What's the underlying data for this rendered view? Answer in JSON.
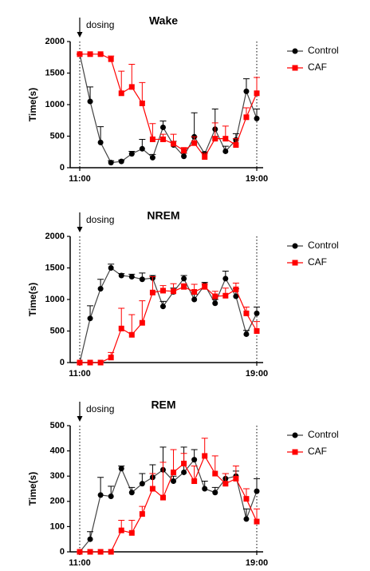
{
  "chart_data": [
    {
      "type": "line",
      "title": "Wake",
      "y_label": "Time(s)",
      "annotation": "dosing",
      "categories": [
        "11:00",
        null,
        null,
        null,
        null,
        null,
        null,
        null,
        null,
        null,
        null,
        null,
        null,
        null,
        null,
        null,
        null,
        "19:00"
      ],
      "series": [
        {
          "name": "Control",
          "color": "#000000",
          "line_color": "#444444",
          "marker": "circle",
          "values": [
            1800,
            1050,
            400,
            80,
            100,
            220,
            300,
            160,
            640,
            360,
            180,
            490,
            220,
            610,
            260,
            440,
            1210,
            780
          ],
          "errors": [
            0,
            230,
            250,
            30,
            20,
            40,
            150,
            50,
            100,
            60,
            50,
            380,
            30,
            320,
            80,
            100,
            200,
            150
          ]
        },
        {
          "name": "CAF",
          "color": "#ff0000",
          "line_color": "#ff0000",
          "marker": "square",
          "values": [
            1800,
            1800,
            1800,
            1720,
            1180,
            1280,
            1020,
            450,
            450,
            380,
            270,
            390,
            170,
            460,
            460,
            360,
            800,
            1180
          ],
          "errors": [
            0,
            0,
            0,
            50,
            350,
            360,
            330,
            250,
            80,
            150,
            50,
            100,
            60,
            250,
            200,
            100,
            150,
            250
          ]
        }
      ],
      "ylim": [
        0,
        2000
      ],
      "yticks": [
        0,
        500,
        1000,
        1500,
        2000
      ],
      "legend": "right"
    },
    {
      "type": "line",
      "title": "NREM",
      "y_label": "Time(s)",
      "annotation": "dosing",
      "categories": [
        "11:00",
        null,
        null,
        null,
        null,
        null,
        null,
        null,
        null,
        null,
        null,
        null,
        null,
        null,
        null,
        null,
        null,
        "19:00"
      ],
      "series": [
        {
          "name": "Control",
          "color": "#000000",
          "line_color": "#444444",
          "marker": "circle",
          "values": [
            0,
            700,
            1170,
            1500,
            1380,
            1360,
            1320,
            1340,
            890,
            1120,
            1330,
            1000,
            1230,
            940,
            1330,
            1050,
            450,
            780
          ],
          "errors": [
            0,
            200,
            150,
            60,
            30,
            40,
            100,
            40,
            80,
            60,
            50,
            80,
            40,
            60,
            120,
            120,
            60,
            100
          ]
        },
        {
          "name": "CAF",
          "color": "#ff0000",
          "line_color": "#ff0000",
          "marker": "square",
          "values": [
            0,
            0,
            0,
            80,
            540,
            440,
            630,
            1110,
            1140,
            1130,
            1200,
            1120,
            1200,
            1050,
            1060,
            1160,
            780,
            500
          ],
          "errors": [
            0,
            0,
            0,
            80,
            320,
            320,
            350,
            250,
            80,
            120,
            50,
            120,
            50,
            80,
            120,
            100,
            100,
            150
          ]
        }
      ],
      "ylim": [
        0,
        2000
      ],
      "yticks": [
        0,
        500,
        1000,
        1500,
        2000
      ],
      "legend": "right"
    },
    {
      "type": "line",
      "title": "REM",
      "y_label": "Time(s)",
      "annotation": "dosing",
      "categories": [
        "11:00",
        null,
        null,
        null,
        null,
        null,
        null,
        null,
        null,
        null,
        null,
        null,
        null,
        null,
        null,
        null,
        null,
        "19:00"
      ],
      "series": [
        {
          "name": "Control",
          "color": "#000000",
          "line_color": "#444444",
          "marker": "circle",
          "values": [
            0,
            50,
            225,
            220,
            330,
            235,
            270,
            295,
            325,
            280,
            315,
            365,
            250,
            235,
            290,
            300,
            130,
            240
          ],
          "errors": [
            0,
            30,
            70,
            40,
            10,
            20,
            40,
            50,
            90,
            20,
            100,
            40,
            30,
            20,
            20,
            20,
            40,
            50
          ]
        },
        {
          "name": "CAF",
          "color": "#ff0000",
          "line_color": "#ff0000",
          "marker": "square",
          "values": [
            0,
            0,
            0,
            0,
            85,
            75,
            150,
            250,
            215,
            315,
            350,
            280,
            380,
            310,
            270,
            290,
            210,
            120
          ],
          "errors": [
            0,
            0,
            0,
            0,
            40,
            50,
            30,
            60,
            140,
            90,
            40,
            60,
            70,
            70,
            40,
            50,
            40,
            50
          ]
        }
      ],
      "ylim": [
        0,
        500
      ],
      "yticks": [
        0,
        100,
        200,
        300,
        400,
        500
      ],
      "legend": "right"
    }
  ]
}
